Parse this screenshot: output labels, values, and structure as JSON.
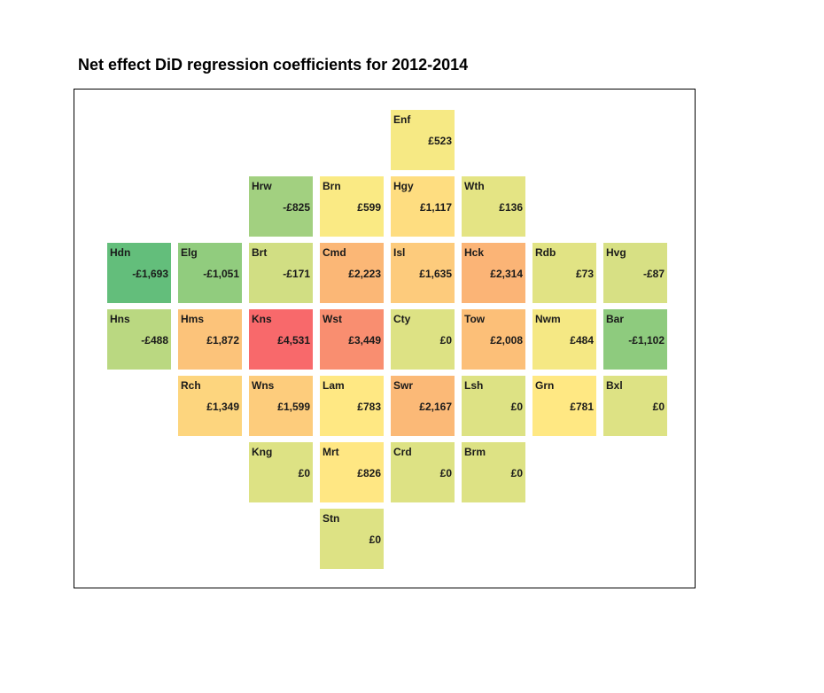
{
  "chart_data": {
    "type": "heatmap",
    "title": "Net effect DiD regression coefficients for 2012-2014",
    "scale": {
      "min": -1693,
      "mid": 0,
      "max": 4531,
      "low_color": "#63be7b",
      "mid_color": "#ffeb84",
      "high_color": "#f8696b"
    },
    "tiles": [
      {
        "code": "Enf",
        "label": "£523",
        "value": 523,
        "row": 0,
        "col": 4
      },
      {
        "code": "Hrw",
        "label": "-£825",
        "value": -825,
        "row": 1,
        "col": 2
      },
      {
        "code": "Brn",
        "label": "£599",
        "value": 599,
        "row": 1,
        "col": 3
      },
      {
        "code": "Hgy",
        "label": "£1,117",
        "value": 1117,
        "row": 1,
        "col": 4
      },
      {
        "code": "Wth",
        "label": "£136",
        "value": 136,
        "row": 1,
        "col": 5
      },
      {
        "code": "Hdn",
        "label": "-£1,693",
        "value": -1693,
        "row": 2,
        "col": 0
      },
      {
        "code": "Elg",
        "label": "-£1,051",
        "value": -1051,
        "row": 2,
        "col": 1
      },
      {
        "code": "Brt",
        "label": "-£171",
        "value": -171,
        "row": 2,
        "col": 2
      },
      {
        "code": "Cmd",
        "label": "£2,223",
        "value": 2223,
        "row": 2,
        "col": 3
      },
      {
        "code": "Isl",
        "label": "£1,635",
        "value": 1635,
        "row": 2,
        "col": 4
      },
      {
        "code": "Hck",
        "label": "£2,314",
        "value": 2314,
        "row": 2,
        "col": 5
      },
      {
        "code": "Rdb",
        "label": "£73",
        "value": 73,
        "row": 2,
        "col": 6
      },
      {
        "code": "Hvg",
        "label": "-£87",
        "value": -87,
        "row": 2,
        "col": 7
      },
      {
        "code": "Hns",
        "label": "-£488",
        "value": -488,
        "row": 3,
        "col": 0
      },
      {
        "code": "Hms",
        "label": "£1,872",
        "value": 1872,
        "row": 3,
        "col": 1
      },
      {
        "code": "Kns",
        "label": "£4,531",
        "value": 4531,
        "row": 3,
        "col": 2
      },
      {
        "code": "Wst",
        "label": "£3,449",
        "value": 3449,
        "row": 3,
        "col": 3
      },
      {
        "code": "Cty",
        "label": "£0",
        "value": 0,
        "row": 3,
        "col": 4
      },
      {
        "code": "Tow",
        "label": "£2,008",
        "value": 2008,
        "row": 3,
        "col": 5
      },
      {
        "code": "Nwm",
        "label": "£484",
        "value": 484,
        "row": 3,
        "col": 6
      },
      {
        "code": "Bar",
        "label": "-£1,102",
        "value": -1102,
        "row": 3,
        "col": 7
      },
      {
        "code": "Rch",
        "label": "£1,349",
        "value": 1349,
        "row": 4,
        "col": 1
      },
      {
        "code": "Wns",
        "label": "£1,599",
        "value": 1599,
        "row": 4,
        "col": 2
      },
      {
        "code": "Lam",
        "label": "£783",
        "value": 783,
        "row": 4,
        "col": 3
      },
      {
        "code": "Swr",
        "label": "£2,167",
        "value": 2167,
        "row": 4,
        "col": 4
      },
      {
        "code": "Lsh",
        "label": "£0",
        "value": 0,
        "row": 4,
        "col": 5
      },
      {
        "code": "Grn",
        "label": "£781",
        "value": 781,
        "row": 4,
        "col": 6
      },
      {
        "code": "Bxl",
        "label": "£0",
        "value": 0,
        "row": 4,
        "col": 7
      },
      {
        "code": "Kng",
        "label": "£0",
        "value": 0,
        "row": 5,
        "col": 2
      },
      {
        "code": "Mrt",
        "label": "£826",
        "value": 826,
        "row": 5,
        "col": 3
      },
      {
        "code": "Crd",
        "label": "£0",
        "value": 0,
        "row": 5,
        "col": 4
      },
      {
        "code": "Brm",
        "label": "£0",
        "value": 0,
        "row": 5,
        "col": 5
      },
      {
        "code": "Stn",
        "label": "£0",
        "value": 0,
        "row": 6,
        "col": 3
      }
    ]
  }
}
